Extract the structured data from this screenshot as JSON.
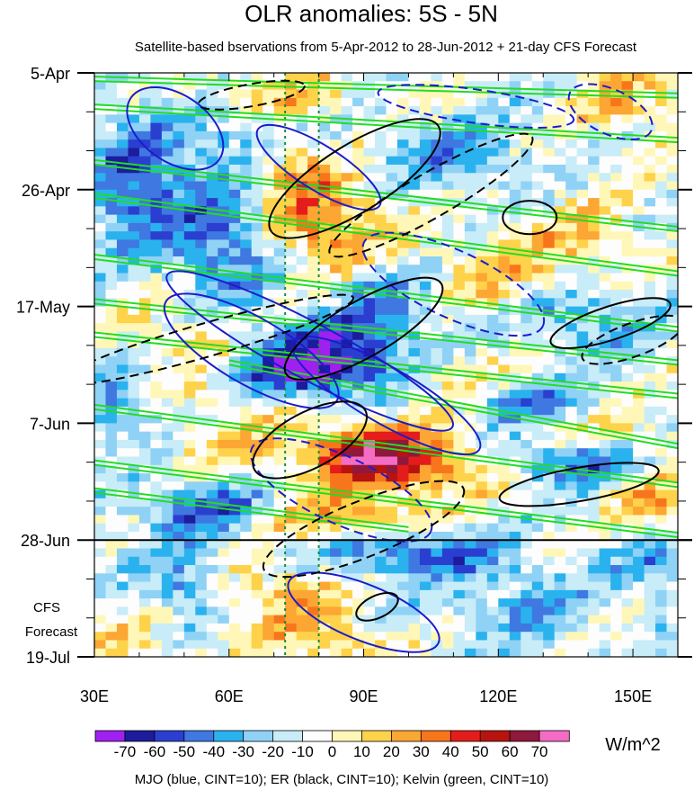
{
  "chart_data": {
    "type": "heatmap",
    "title": "OLR anomalies: 5S - 5N",
    "subtitle": "Satellite-based bservations from 5-Apr-2012 to 28-Jun-2012 + 21-day CFS Forecast",
    "xlabel": "",
    "ylabel": "",
    "x_range": [
      30,
      160
    ],
    "y_range_days": [
      0,
      105
    ],
    "x_ticks": [
      {
        "value": 30,
        "label": "30E"
      },
      {
        "value": 60,
        "label": "60E"
      },
      {
        "value": 90,
        "label": "90E"
      },
      {
        "value": 120,
        "label": "120E"
      },
      {
        "value": 150,
        "label": "150E"
      }
    ],
    "y_ticks": [
      {
        "day": 0,
        "label": "5-Apr"
      },
      {
        "day": 21,
        "label": "26-Apr"
      },
      {
        "day": 42,
        "label": "17-May"
      },
      {
        "day": 63,
        "label": "7-Jun"
      },
      {
        "day": 84,
        "label": "28-Jun"
      },
      {
        "day": 105,
        "label": "19-Jul"
      }
    ],
    "observation_end_day": 84,
    "forecast_label_line1": "CFS",
    "forecast_label_line2": "Forecast",
    "reference_lines_lon": [
      72.5,
      80
    ],
    "colorbar": {
      "labels": [
        "-70",
        "-60",
        "-50",
        "-40",
        "-30",
        "-20",
        "-10",
        "0",
        "10",
        "20",
        "30",
        "40",
        "50",
        "60",
        "70"
      ],
      "colors": [
        "#a020f0",
        "#1c1c9c",
        "#2a3fd0",
        "#3f78e0",
        "#2ab2ee",
        "#8fd2f5",
        "#c8ecf8",
        "#fdfdfd",
        "#fff7b8",
        "#fed24a",
        "#fca634",
        "#f7761c",
        "#e41c1c",
        "#b8140f",
        "#90183c",
        "#f46cc4"
      ],
      "units": "W/m^2"
    },
    "contour_legend": "MJO (blue, CINT=10); ER (black, CINT=10); Kelvin (green, CINT=10)",
    "contours": {
      "mjo_color": "#1c1ccc",
      "er_color": "#000000",
      "kelvin_color": "#22dd22"
    },
    "anomaly_features": [
      {
        "lon": 80,
        "day": 27,
        "value": 45,
        "sx": 10,
        "sy": 6
      },
      {
        "lon": 72,
        "day": 16,
        "value": 30,
        "sx": 7,
        "sy": 4
      },
      {
        "lon": 72,
        "day": 4,
        "value": 25,
        "sx": 12,
        "sy": 3
      },
      {
        "lon": 100,
        "day": 70,
        "value": 55,
        "sx": 14,
        "sy": 4
      },
      {
        "lon": 88,
        "day": 68,
        "value": 40,
        "sx": 8,
        "sy": 3
      },
      {
        "lon": 85,
        "day": 80,
        "value": 35,
        "sx": 14,
        "sy": 3
      },
      {
        "lon": 72,
        "day": 95,
        "value": 30,
        "sx": 10,
        "sy": 5
      },
      {
        "lon": 85,
        "day": 103,
        "value": 25,
        "sx": 8,
        "sy": 3
      },
      {
        "lon": 40,
        "day": 102,
        "value": 15,
        "sx": 12,
        "sy": 5
      },
      {
        "lon": 60,
        "day": 64,
        "value": 20,
        "sx": 12,
        "sy": 6
      },
      {
        "lon": 50,
        "day": 48,
        "value": 20,
        "sx": 10,
        "sy": 5
      },
      {
        "lon": 118,
        "day": 36,
        "value": 25,
        "sx": 10,
        "sy": 5
      },
      {
        "lon": 110,
        "day": 55,
        "value": 20,
        "sx": 12,
        "sy": 4
      },
      {
        "lon": 150,
        "day": 5,
        "value": 25,
        "sx": 10,
        "sy": 5
      },
      {
        "lon": 140,
        "day": 30,
        "value": 20,
        "sx": 10,
        "sy": 6
      },
      {
        "lon": 155,
        "day": 76,
        "value": 30,
        "sx": 6,
        "sy": 6
      },
      {
        "lon": 145,
        "day": 66,
        "value": 20,
        "sx": 10,
        "sy": 4
      },
      {
        "lon": 78,
        "day": 54,
        "value": -55,
        "sx": 12,
        "sy": 3
      },
      {
        "lon": 86,
        "day": 49,
        "value": -45,
        "sx": 12,
        "sy": 4
      },
      {
        "lon": 60,
        "day": 30,
        "value": -40,
        "sx": 8,
        "sy": 8
      },
      {
        "lon": 40,
        "day": 20,
        "value": -45,
        "sx": 8,
        "sy": 8
      },
      {
        "lon": 55,
        "day": 78,
        "value": -45,
        "sx": 10,
        "sy": 3
      },
      {
        "lon": 50,
        "day": 92,
        "value": -30,
        "sx": 6,
        "sy": 6
      },
      {
        "lon": 100,
        "day": 86,
        "value": -40,
        "sx": 14,
        "sy": 3
      },
      {
        "lon": 140,
        "day": 70,
        "value": -45,
        "sx": 14,
        "sy": 3
      },
      {
        "lon": 125,
        "day": 59,
        "value": -35,
        "sx": 10,
        "sy": 3
      },
      {
        "lon": 140,
        "day": 44,
        "value": -30,
        "sx": 10,
        "sy": 4
      },
      {
        "lon": 110,
        "day": 15,
        "value": -30,
        "sx": 10,
        "sy": 4
      },
      {
        "lon": 65,
        "day": 12,
        "value": -25,
        "sx": 8,
        "sy": 4
      },
      {
        "lon": 125,
        "day": 95,
        "value": -20,
        "sx": 12,
        "sy": 5
      },
      {
        "lon": 155,
        "day": 88,
        "value": -30,
        "sx": 6,
        "sy": 4
      },
      {
        "lon": 35,
        "day": 60,
        "value": -25,
        "sx": 8,
        "sy": 5
      },
      {
        "lon": 95,
        "day": 40,
        "value": -25,
        "sx": 8,
        "sy": 4
      }
    ],
    "mjo_ellipses": [
      {
        "lon": 48,
        "day": 10,
        "a": 12,
        "b": 6,
        "angle": 35,
        "dashed": false
      },
      {
        "lon": 78,
        "day": 50,
        "a": 36,
        "b": 5,
        "angle": 28,
        "dashed": false
      },
      {
        "lon": 65,
        "day": 50,
        "a": 22,
        "b": 6,
        "angle": 30,
        "dashed": false
      },
      {
        "lon": 95,
        "day": 58,
        "a": 24,
        "b": 5,
        "angle": 30,
        "dashed": false
      },
      {
        "lon": 90,
        "day": 97,
        "a": 18,
        "b": 5,
        "angle": 22,
        "dashed": false
      },
      {
        "lon": 80,
        "day": 17,
        "a": 16,
        "b": 4,
        "angle": 32,
        "dashed": false
      },
      {
        "lon": 115,
        "day": 6,
        "a": 22,
        "b": 3,
        "angle": 8,
        "dashed": true
      },
      {
        "lon": 110,
        "day": 38,
        "a": 22,
        "b": 6,
        "angle": 25,
        "dashed": true
      },
      {
        "lon": 85,
        "day": 75,
        "a": 22,
        "b": 6,
        "angle": 25,
        "dashed": true
      },
      {
        "lon": 145,
        "day": 7,
        "a": 10,
        "b": 4,
        "angle": 25,
        "dashed": true
      }
    ],
    "er_ellipses": [
      {
        "lon": 88,
        "day": 19,
        "a": 22,
        "b": 6,
        "angle": -32,
        "dashed": false
      },
      {
        "lon": 90,
        "day": 46,
        "a": 20,
        "b": 5,
        "angle": -30,
        "dashed": false
      },
      {
        "lon": 78,
        "day": 66,
        "a": 14,
        "b": 5,
        "angle": -28,
        "dashed": false
      },
      {
        "lon": 127,
        "day": 26,
        "a": 6,
        "b": 3,
        "angle": 0,
        "dashed": false
      },
      {
        "lon": 145,
        "day": 45,
        "a": 14,
        "b": 3,
        "angle": -18,
        "dashed": false
      },
      {
        "lon": 138,
        "day": 74,
        "a": 18,
        "b": 3,
        "angle": -10,
        "dashed": false
      },
      {
        "lon": 93,
        "day": 96,
        "a": 5,
        "b": 2,
        "angle": -25,
        "dashed": false
      },
      {
        "lon": 65,
        "day": 4,
        "a": 12,
        "b": 2,
        "angle": -10,
        "dashed": true
      },
      {
        "lon": 55,
        "day": 48,
        "a": 34,
        "b": 3,
        "angle": -16,
        "dashed": true
      },
      {
        "lon": 105,
        "day": 22,
        "a": 26,
        "b": 4,
        "angle": -30,
        "dashed": true
      },
      {
        "lon": 90,
        "day": 82,
        "a": 24,
        "b": 5,
        "angle": -22,
        "dashed": true
      },
      {
        "lon": 150,
        "day": 48,
        "a": 12,
        "b": 3,
        "angle": -20,
        "dashed": true
      }
    ],
    "kelvin_bands": [
      {
        "start": [
          30,
          1
        ],
        "end": [
          160,
          4
        ]
      },
      {
        "start": [
          30,
          6
        ],
        "end": [
          160,
          12
        ]
      },
      {
        "start": [
          30,
          16
        ],
        "end": [
          160,
          28
        ]
      },
      {
        "start": [
          30,
          22
        ],
        "end": [
          160,
          36
        ]
      },
      {
        "start": [
          30,
          33
        ],
        "end": [
          160,
          46
        ]
      },
      {
        "start": [
          30,
          41
        ],
        "end": [
          160,
          52
        ]
      },
      {
        "start": [
          30,
          47
        ],
        "end": [
          160,
          58
        ]
      },
      {
        "start": [
          60,
          52
        ],
        "end": [
          160,
          67
        ]
      },
      {
        "start": [
          30,
          60
        ],
        "end": [
          160,
          74
        ]
      },
      {
        "start": [
          30,
          70
        ],
        "end": [
          160,
          83
        ]
      },
      {
        "start": [
          30,
          75
        ],
        "end": [
          100,
          82
        ]
      }
    ]
  }
}
